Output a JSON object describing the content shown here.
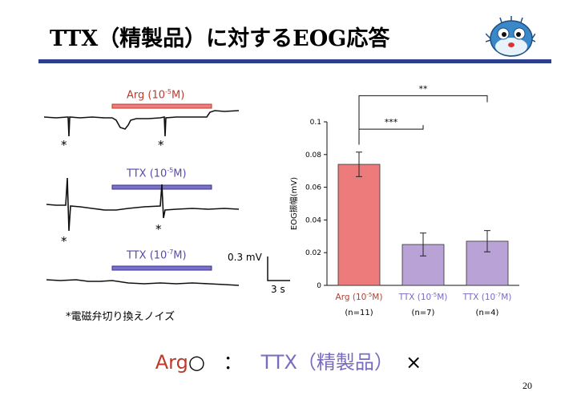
{
  "title": "TTX（精製品）に対するEOG応答",
  "traces": [
    {
      "stim_base": "Arg (10",
      "stim_exp": "-5",
      "stim_tail": "M)",
      "color": "#c0392b",
      "bar_fill": "#e88080"
    },
    {
      "stim_base": "TTX (10",
      "stim_exp": "-5",
      "stim_tail": "M)",
      "color": "#5a4aa8",
      "bar_fill": "#7a72c8"
    },
    {
      "stim_base": "TTX (10",
      "stim_exp": "-7",
      "stim_tail": "M)",
      "color": "#5a4aa8",
      "bar_fill": "#7a72c8"
    }
  ],
  "marker": "*",
  "scale": {
    "amp": "0.3 mV",
    "time": "3 s"
  },
  "footnote": "*電磁弁切り換えノイズ",
  "chart_data": {
    "type": "bar",
    "ylabel": "EOG振幅(mV)",
    "ylim": [
      0,
      0.1
    ],
    "yticks": [
      "0",
      "0.02",
      "0.04",
      "0.06",
      "0.08",
      "0.1"
    ],
    "categories": [
      {
        "base": "Arg (10",
        "exp": "-5",
        "tail": "M)",
        "n": "(n=11)",
        "color": "#c0392b"
      },
      {
        "base": "TTX (10",
        "exp": "-5",
        "tail": "M)",
        "n": "(n=7)",
        "color": "#7a6bc0"
      },
      {
        "base": "TTX (10",
        "exp": "-7",
        "tail": "M)",
        "n": "(n=4)",
        "color": "#7a6bc0"
      }
    ],
    "values": [
      0.074,
      0.025,
      0.027
    ],
    "errors": [
      0.0075,
      0.007,
      0.0065
    ],
    "bar_colors": [
      "#ee7b7b",
      "#b9a2d6",
      "#b9a2d6"
    ],
    "significance": [
      {
        "from": 0,
        "to": 1,
        "label": "***"
      },
      {
        "from": 0,
        "to": 2,
        "label": "**"
      }
    ]
  },
  "bottom": {
    "arg": "Arg",
    "circle": "○",
    "colon": "：",
    "ttx": "TTX（精製品）",
    "cross": "×"
  },
  "page_number": "20"
}
